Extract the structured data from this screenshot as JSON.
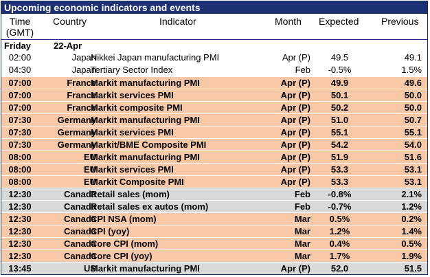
{
  "title": "Upcoming economic indicators and events",
  "headers": {
    "time": "Time\n(GMT)",
    "time_line1": "Time",
    "time_line2": "(GMT)",
    "country": "Country",
    "indicator": "Indicator",
    "month": "Month",
    "expected": "Expected",
    "previous": "Previous"
  },
  "day": "Friday",
  "date": "22-Apr",
  "rows": [
    {
      "time": "02:00",
      "country": "Japan",
      "indicator": "Nikkei Japan manufacturing PMI",
      "month": "Apr (P)",
      "expected": "49.5",
      "previous": "49.1"
    },
    {
      "time": "04:30",
      "country": "Japan",
      "indicator": "Tertiary Sector Index",
      "month": "Feb",
      "expected": "-0.5%",
      "previous": "1.5%"
    },
    {
      "time": "07:00",
      "country": "France",
      "indicator": "Markit manufacturing PMI",
      "month": "Apr (P)",
      "expected": "49.9",
      "previous": "49.6"
    },
    {
      "time": "07:00",
      "country": "France",
      "indicator": "Markit services PMI",
      "month": "Apr (P)",
      "expected": "50.1",
      "previous": "50.0"
    },
    {
      "time": "07:00",
      "country": "France",
      "indicator": "Markit composite PMI",
      "month": "Apr (P)",
      "expected": "50.2",
      "previous": "50.0"
    },
    {
      "time": "07:30",
      "country": "Germany",
      "indicator": "Markit manufacturing PMI",
      "month": "Apr (P)",
      "expected": "51.0",
      "previous": "50.7"
    },
    {
      "time": "07:30",
      "country": "Germany",
      "indicator": "Markit services PMI",
      "month": "Apr (P)",
      "expected": "55.1",
      "previous": "55.1"
    },
    {
      "time": "07:30",
      "country": "Germany",
      "indicator": "Markit/BME Composite PMI",
      "month": "Apr (P)",
      "expected": "54.2",
      "previous": "54.0"
    },
    {
      "time": "08:00",
      "country": "EU",
      "indicator": "Markit manufacturing PMI",
      "month": "Apr (P)",
      "expected": "51.9",
      "previous": "51.6"
    },
    {
      "time": "08:00",
      "country": "EU",
      "indicator": "Markit services PMI",
      "month": "Apr (P)",
      "expected": "53.3",
      "previous": "53.1"
    },
    {
      "time": "08:00",
      "country": "EU",
      "indicator": "Markit Composite PMI",
      "month": "Apr (P)",
      "expected": "53.3",
      "previous": "53.1"
    },
    {
      "time": "12:30",
      "country": "Canada",
      "indicator": "Retail sales (mom)",
      "month": "Feb",
      "expected": "-0.8%",
      "previous": "2.1%"
    },
    {
      "time": "12:30",
      "country": "Canada",
      "indicator": "Retail sales ex autos (mom)",
      "month": "Feb",
      "expected": "-0.7%",
      "previous": "1.2%"
    },
    {
      "time": "12:30",
      "country": "Canada",
      "indicator": "CPI NSA (mom)",
      "month": "Mar",
      "expected": "0.5%",
      "previous": "0.2%"
    },
    {
      "time": "12:30",
      "country": "Canada",
      "indicator": "CPI (yoy)",
      "month": "Mar",
      "expected": "1.2%",
      "previous": "1.4%"
    },
    {
      "time": "12:30",
      "country": "Canada",
      "indicator": "Core CPI (mom)",
      "month": "Mar",
      "expected": "0.4%",
      "previous": "0.5%"
    },
    {
      "time": "12:30",
      "country": "Canada",
      "indicator": "Core CPI (yoy)",
      "month": "Mar",
      "expected": "1.7%",
      "previous": "1.9%"
    },
    {
      "time": "13:45",
      "country": "US",
      "indicator": "Markit manufacturing PMI",
      "month": "Apr (P)",
      "expected": "52.0",
      "previous": "51.5"
    }
  ],
  "colors": {
    "title_bg": "#1b3174",
    "highlight_orange": "#f9c8a7",
    "highlight_gray": "#d9d9d9"
  }
}
